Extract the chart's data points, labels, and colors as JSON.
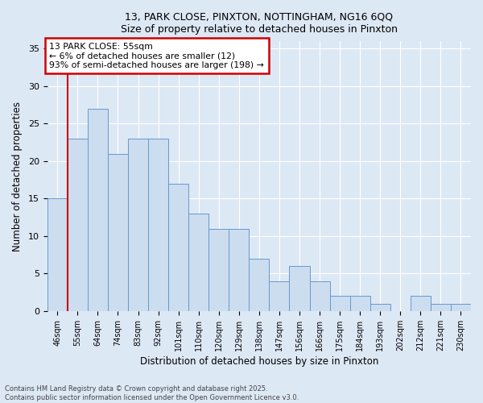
{
  "title_line1": "13, PARK CLOSE, PINXTON, NOTTINGHAM, NG16 6QQ",
  "title_line2": "Size of property relative to detached houses in Pinxton",
  "xlabel": "Distribution of detached houses by size in Pinxton",
  "ylabel": "Number of detached properties",
  "bar_color": "#ccddf0",
  "bar_edge_color": "#6699cc",
  "categories": [
    "46sqm",
    "55sqm",
    "64sqm",
    "74sqm",
    "83sqm",
    "92sqm",
    "101sqm",
    "110sqm",
    "120sqm",
    "129sqm",
    "138sqm",
    "147sqm",
    "156sqm",
    "166sqm",
    "175sqm",
    "184sqm",
    "193sqm",
    "202sqm",
    "212sqm",
    "221sqm",
    "230sqm"
  ],
  "values": [
    15,
    23,
    27,
    21,
    23,
    23,
    17,
    13,
    11,
    11,
    7,
    4,
    6,
    4,
    2,
    2,
    1,
    0,
    2,
    1,
    1
  ],
  "ylim": [
    0,
    36
  ],
  "yticks": [
    0,
    5,
    10,
    15,
    20,
    25,
    30,
    35
  ],
  "property_bar_index": 1,
  "annotation_text": "13 PARK CLOSE: 55sqm\n← 6% of detached houses are smaller (12)\n93% of semi-detached houses are larger (198) →",
  "annotation_box_color": "#ffffff",
  "annotation_box_edge_color": "#cc0000",
  "vline_color": "#cc0000",
  "bg_color": "#dde8f5",
  "grid_color": "#ffffff",
  "footer_text": "Contains HM Land Registry data © Crown copyright and database right 2025.\nContains public sector information licensed under the Open Government Licence v3.0."
}
